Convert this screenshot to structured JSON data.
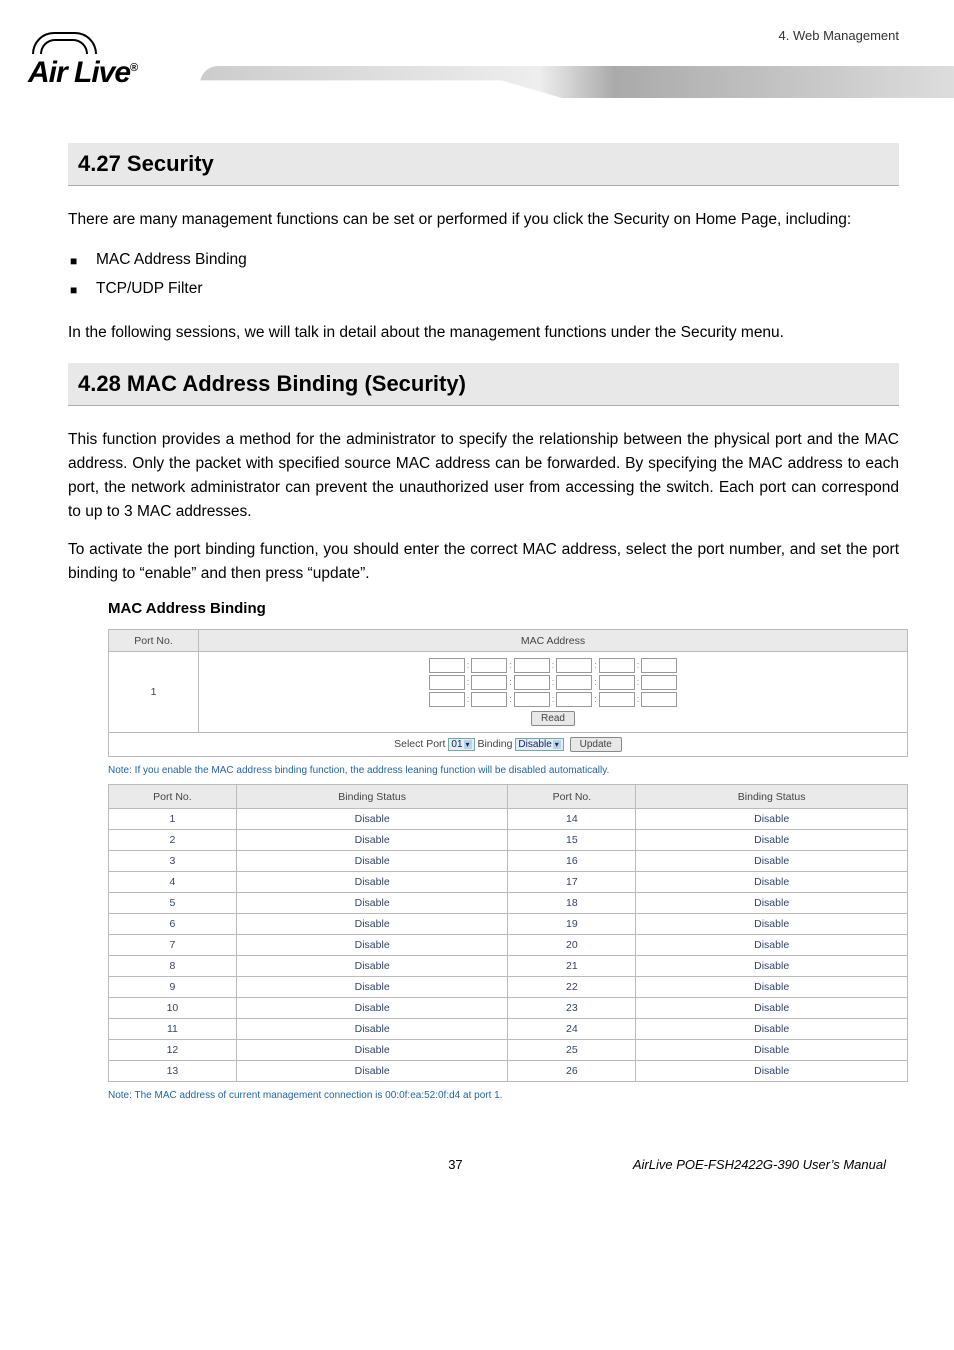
{
  "header": {
    "right_text": "4. Web Management",
    "logo_text": "Air Live",
    "logo_reg": "®"
  },
  "section1": {
    "heading": "4.27 Security",
    "intro": "There are many management functions can be set or performed if you click the Security on Home Page, including:",
    "bullets": [
      "MAC Address Binding",
      "TCP/UDP Filter"
    ],
    "outro": "In the following sessions, we will talk in detail about the management functions under the Security menu."
  },
  "section2": {
    "heading": "4.28 MAC Address Binding (Security)",
    "para1": "This function provides a method for the administrator to specify the relationship between the physical port and the MAC address. Only the packet with specified source MAC address can be forwarded. By specifying the MAC address to each port, the network administrator can prevent the unauthorized user from accessing the switch. Each port can correspond to up to 3 MAC addresses.",
    "para2": "To activate the port binding function, you should enter the correct MAC address, select the port number, and set the port binding to “enable” and then press “update”.",
    "sub_heading": "MAC Address Binding"
  },
  "table1": {
    "col_port": "Port No.",
    "col_mac": "MAC Address",
    "port_value": "1",
    "read_btn": "Read",
    "select_label": "Select Port",
    "select_port_val": "01",
    "binding_label": "Binding",
    "binding_val": "Disable",
    "update_btn": "Update"
  },
  "note1": "Note: If you enable the MAC address binding function, the address leaning function will be disabled automatically.",
  "table2": {
    "col1": "Port No.",
    "col2": "Binding Status",
    "col3": "Port No.",
    "col4": "Binding Status",
    "rows": [
      {
        "p1": "1",
        "s1": "Disable",
        "p2": "14",
        "s2": "Disable"
      },
      {
        "p1": "2",
        "s1": "Disable",
        "p2": "15",
        "s2": "Disable"
      },
      {
        "p1": "3",
        "s1": "Disable",
        "p2": "16",
        "s2": "Disable"
      },
      {
        "p1": "4",
        "s1": "Disable",
        "p2": "17",
        "s2": "Disable"
      },
      {
        "p1": "5",
        "s1": "Disable",
        "p2": "18",
        "s2": "Disable"
      },
      {
        "p1": "6",
        "s1": "Disable",
        "p2": "19",
        "s2": "Disable"
      },
      {
        "p1": "7",
        "s1": "Disable",
        "p2": "20",
        "s2": "Disable"
      },
      {
        "p1": "8",
        "s1": "Disable",
        "p2": "21",
        "s2": "Disable"
      },
      {
        "p1": "9",
        "s1": "Disable",
        "p2": "22",
        "s2": "Disable"
      },
      {
        "p1": "10",
        "s1": "Disable",
        "p2": "23",
        "s2": "Disable"
      },
      {
        "p1": "11",
        "s1": "Disable",
        "p2": "24",
        "s2": "Disable"
      },
      {
        "p1": "12",
        "s1": "Disable",
        "p2": "25",
        "s2": "Disable"
      },
      {
        "p1": "13",
        "s1": "Disable",
        "p2": "26",
        "s2": "Disable"
      }
    ]
  },
  "note2": "Note: The MAC address of current management connection is 00:0f:ea:52:0f:d4 at port 1.",
  "footer": {
    "page": "37",
    "manual": "AirLive POE-FSH2422G-390 User’s Manual"
  }
}
